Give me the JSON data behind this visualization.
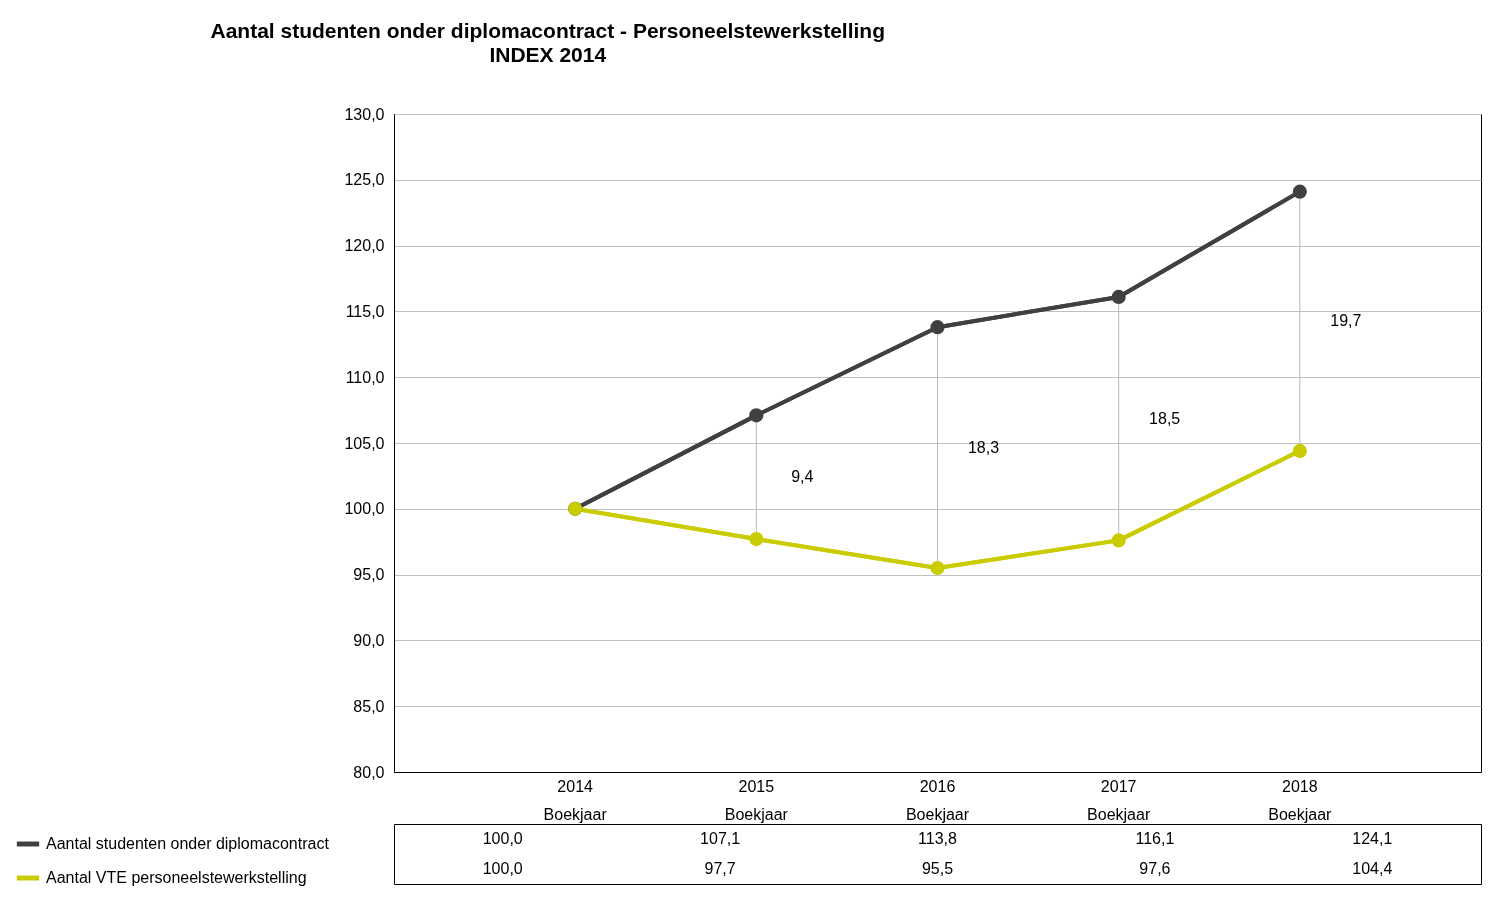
{
  "chart_data": {
    "type": "line",
    "title": "Aantal studenten onder diplomacontract  -  Personeelstewerkstelling",
    "subtitle": "INDEX 2014",
    "categories": [
      "2014\nBoekjaar",
      "2015\nBoekjaar",
      "2016\nBoekjaar",
      "2017\nBoekjaar",
      "2018\nBoekjaar"
    ],
    "series": [
      {
        "name": "Aantal studenten onder diplomacontract",
        "color": "#404040",
        "values": [
          100.0,
          107.1,
          113.8,
          116.1,
          124.1
        ],
        "value_labels": [
          "100,0",
          "107,1",
          "113,8",
          "116,1",
          "124,1"
        ]
      },
      {
        "name": "Aantal VTE personeelstewerkstelling",
        "color": "#c8cc00",
        "values": [
          100.0,
          97.7,
          95.5,
          97.6,
          104.4
        ],
        "value_labels": [
          "100,0",
          "97,7",
          "95,5",
          "97,6",
          "104,4"
        ]
      }
    ],
    "ylim": [
      80,
      130
    ],
    "yticks": [
      {
        "value": 80,
        "label": "80,0"
      },
      {
        "value": 85,
        "label": "85,0"
      },
      {
        "value": 90,
        "label": "90,0"
      },
      {
        "value": 95,
        "label": "95,0"
      },
      {
        "value": 100,
        "label": "100,0"
      },
      {
        "value": 105,
        "label": "105,0"
      },
      {
        "value": 110,
        "label": "110,0"
      },
      {
        "value": 115,
        "label": "115,0"
      },
      {
        "value": 120,
        "label": "120,0"
      },
      {
        "value": 125,
        "label": "125,0"
      },
      {
        "value": 130,
        "label": "130,0"
      }
    ],
    "grid": "y",
    "marker": "circle",
    "line_style": "solid",
    "legend": "bottom left",
    "annotations": [
      "9,4",
      "18,3",
      "18,5",
      "19,7"
    ]
  }
}
